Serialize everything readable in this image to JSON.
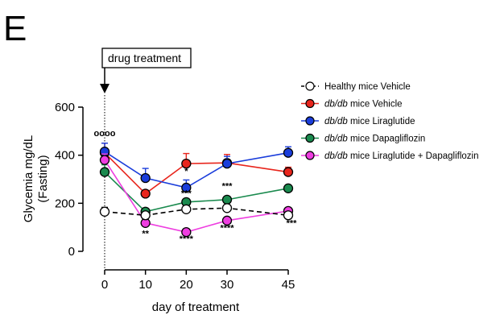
{
  "panel_letter": "E",
  "chart_data": {
    "type": "line",
    "xlabel": "day of treatment",
    "ylabel": [
      "Glycemia mg/dL",
      "(Fasting)"
    ],
    "x": [
      0,
      10,
      20,
      30,
      45
    ],
    "x_tick_labels": [
      "0",
      "10",
      "20",
      "30",
      "45"
    ],
    "y_ticks": [
      0,
      200,
      400,
      600
    ],
    "y_tick_labels": [
      "0",
      "200",
      "400",
      "600"
    ],
    "ylim": [
      0,
      600
    ],
    "grid": false,
    "legend_position": "right",
    "annotation": {
      "label": "drug treatment",
      "x": 0
    },
    "series": [
      {
        "legend_prefix": "",
        "legend_suffix": "Healthy mice Vehicle",
        "color": "#000000",
        "marker_fill": "#ffffff",
        "dashed": true,
        "values": [
          165,
          150,
          175,
          180,
          150
        ],
        "errors": [
          18,
          8,
          8,
          8,
          10
        ]
      },
      {
        "legend_prefix": "db/db",
        "legend_suffix": " mice Vehicle",
        "color": "#e8251c",
        "marker_fill": "#e8251c",
        "dashed": false,
        "values": [
          410,
          240,
          365,
          368,
          330
        ],
        "errors": [
          40,
          0,
          42,
          35,
          20
        ]
      },
      {
        "legend_prefix": "db/db",
        "legend_suffix": " mice Liraglutide",
        "color": "#1a3ddb",
        "marker_fill": "#1a3ddb",
        "dashed": false,
        "values": [
          415,
          305,
          265,
          365,
          410
        ],
        "errors": [
          35,
          40,
          32,
          30,
          25
        ]
      },
      {
        "legend_prefix": "db/db",
        "legend_suffix": " mice Dapagliflozin",
        "color": "#1a8a4e",
        "marker_fill": "#1a8a4e",
        "dashed": false,
        "values": [
          330,
          165,
          205,
          215,
          262
        ],
        "errors": [
          30,
          10,
          10,
          10,
          8
        ]
      },
      {
        "legend_prefix": "db/db",
        "legend_suffix": " mice Liraglutide + Dapagliflozin",
        "color": "#ee3de0",
        "marker_fill": "#ee3de0",
        "dashed": false,
        "values": [
          380,
          118,
          80,
          128,
          168
        ],
        "errors": [
          25,
          10,
          8,
          8,
          10
        ]
      }
    ],
    "significance_labels": [
      {
        "x": 0,
        "y": 480,
        "text": "oooo"
      },
      {
        "x": 20,
        "y": 322,
        "text": "*"
      },
      {
        "x": 20,
        "y": 230,
        "text": "***"
      },
      {
        "x": 30,
        "y": 260,
        "text": "***"
      },
      {
        "x": 10,
        "y": 62,
        "text": "**"
      },
      {
        "x": 20,
        "y": 40,
        "text": "****"
      },
      {
        "x": 30,
        "y": 85,
        "text": "****"
      },
      {
        "x": 45,
        "y": 105,
        "text": "***"
      }
    ]
  }
}
